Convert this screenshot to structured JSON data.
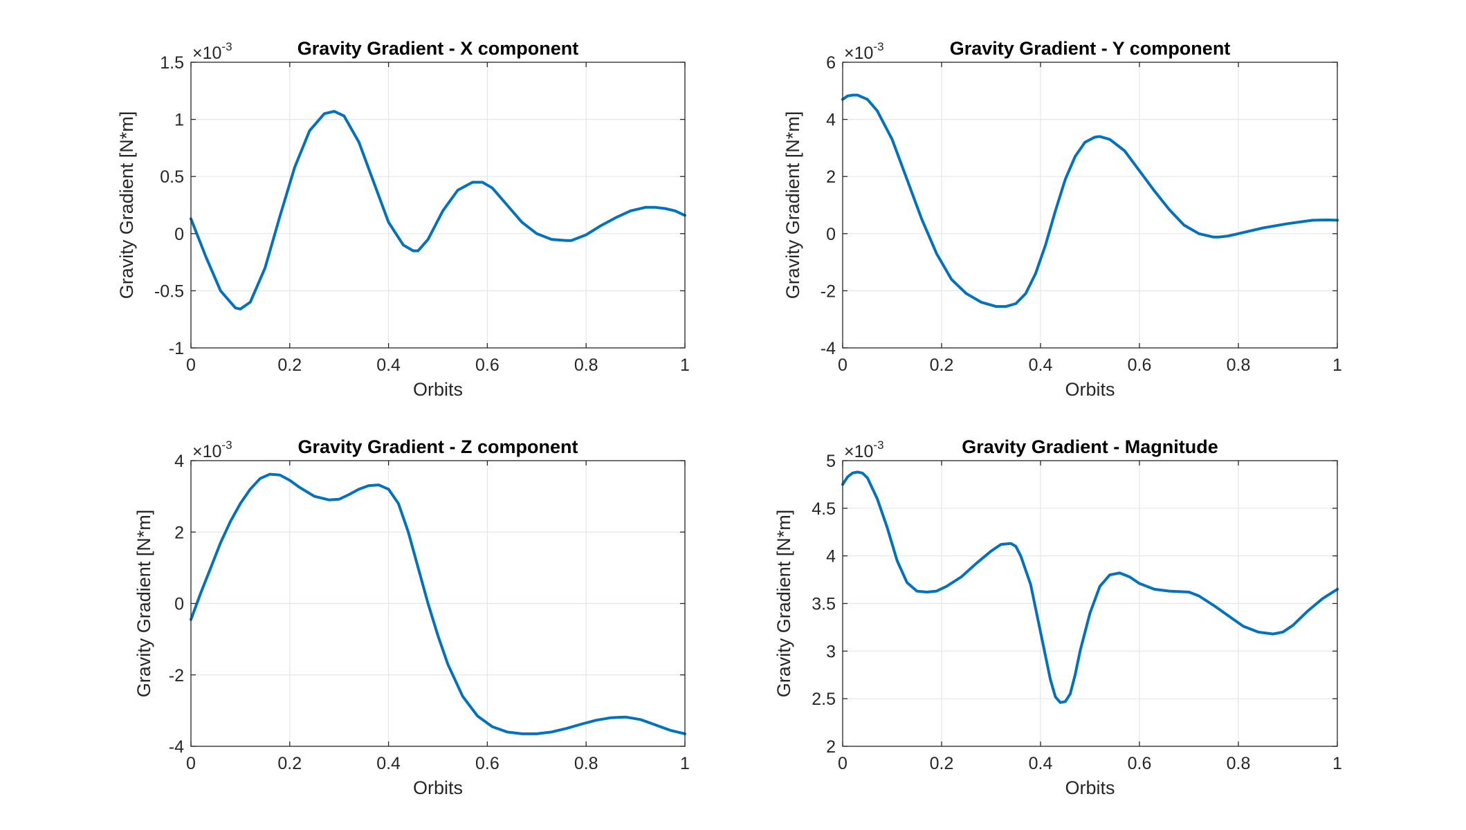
{
  "chart_data": [
    {
      "type": "line",
      "title": "Gravity Gradient - X component",
      "xlabel": "Orbits",
      "ylabel": "Gravity Gradient [N*m]",
      "exponent_label": "×10",
      "exponent_power": "-3",
      "xlim": [
        0,
        1
      ],
      "ylim": [
        -1,
        1.5
      ],
      "xticks": [
        0,
        0.2,
        0.4,
        0.6,
        0.8,
        1
      ],
      "xtick_labels": [
        "0",
        "0.2",
        "0.4",
        "0.6",
        "0.8",
        "1"
      ],
      "yticks": [
        -1,
        -0.5,
        0,
        0.5,
        1,
        1.5
      ],
      "ytick_labels": [
        "-1",
        "-0.5",
        "0",
        "0.5",
        "1",
        "1.5"
      ],
      "grid": true,
      "color": "#0072bd",
      "series": [
        {
          "x": [
            0,
            0.03,
            0.06,
            0.09,
            0.1,
            0.12,
            0.15,
            0.18,
            0.21,
            0.24,
            0.27,
            0.29,
            0.31,
            0.34,
            0.37,
            0.4,
            0.43,
            0.45,
            0.46,
            0.48,
            0.51,
            0.54,
            0.57,
            0.59,
            0.61,
            0.64,
            0.67,
            0.7,
            0.73,
            0.76,
            0.77,
            0.8,
            0.83,
            0.86,
            0.89,
            0.92,
            0.94,
            0.96,
            0.98,
            1.0
          ],
          "y": [
            0.13,
            -0.2,
            -0.5,
            -0.65,
            -0.66,
            -0.6,
            -0.3,
            0.15,
            0.58,
            0.9,
            1.05,
            1.07,
            1.03,
            0.8,
            0.45,
            0.1,
            -0.1,
            -0.15,
            -0.15,
            -0.05,
            0.2,
            0.38,
            0.45,
            0.45,
            0.4,
            0.25,
            0.1,
            0.0,
            -0.05,
            -0.06,
            -0.06,
            -0.01,
            0.07,
            0.14,
            0.2,
            0.23,
            0.23,
            0.22,
            0.2,
            0.16
          ]
        }
      ]
    },
    {
      "type": "line",
      "title": "Gravity Gradient - Y component",
      "xlabel": "Orbits",
      "ylabel": "Gravity Gradient [N*m]",
      "exponent_label": "×10",
      "exponent_power": "-3",
      "xlim": [
        0,
        1
      ],
      "ylim": [
        -4,
        6
      ],
      "xticks": [
        0,
        0.2,
        0.4,
        0.6,
        0.8,
        1
      ],
      "xtick_labels": [
        "0",
        "0.2",
        "0.4",
        "0.6",
        "0.8",
        "1"
      ],
      "yticks": [
        -4,
        -2,
        0,
        2,
        4,
        6
      ],
      "ytick_labels": [
        "-4",
        "-2",
        "0",
        "2",
        "4",
        "6"
      ],
      "grid": true,
      "color": "#0072bd",
      "series": [
        {
          "x": [
            0,
            0.01,
            0.02,
            0.03,
            0.05,
            0.07,
            0.1,
            0.13,
            0.16,
            0.19,
            0.22,
            0.25,
            0.28,
            0.31,
            0.33,
            0.35,
            0.37,
            0.39,
            0.41,
            0.43,
            0.45,
            0.47,
            0.49,
            0.51,
            0.52,
            0.54,
            0.57,
            0.6,
            0.63,
            0.66,
            0.69,
            0.72,
            0.75,
            0.76,
            0.78,
            0.8,
            0.85,
            0.9,
            0.95,
            0.98,
            1.0
          ],
          "y": [
            4.7,
            4.82,
            4.85,
            4.85,
            4.7,
            4.3,
            3.3,
            1.9,
            0.5,
            -0.7,
            -1.6,
            -2.1,
            -2.4,
            -2.55,
            -2.55,
            -2.45,
            -2.1,
            -1.4,
            -0.4,
            0.8,
            1.9,
            2.7,
            3.2,
            3.38,
            3.4,
            3.3,
            2.9,
            2.2,
            1.5,
            0.85,
            0.3,
            0.0,
            -0.12,
            -0.12,
            -0.08,
            0.0,
            0.2,
            0.35,
            0.47,
            0.48,
            0.47
          ]
        }
      ]
    },
    {
      "type": "line",
      "title": "Gravity Gradient - Z component",
      "xlabel": "Orbits",
      "ylabel": "Gravity Gradient [N*m]",
      "exponent_label": "×10",
      "exponent_power": "-3",
      "xlim": [
        0,
        1
      ],
      "ylim": [
        -4,
        4
      ],
      "xticks": [
        0,
        0.2,
        0.4,
        0.6,
        0.8,
        1
      ],
      "xtick_labels": [
        "0",
        "0.2",
        "0.4",
        "0.6",
        "0.8",
        "1"
      ],
      "yticks": [
        -4,
        -2,
        0,
        2,
        4
      ],
      "ytick_labels": [
        "-4",
        "-2",
        "0",
        "2",
        "4"
      ],
      "grid": true,
      "color": "#0072bd",
      "series": [
        {
          "x": [
            0,
            0.02,
            0.04,
            0.06,
            0.08,
            0.1,
            0.12,
            0.14,
            0.16,
            0.18,
            0.2,
            0.22,
            0.25,
            0.28,
            0.3,
            0.32,
            0.34,
            0.36,
            0.38,
            0.4,
            0.42,
            0.44,
            0.46,
            0.48,
            0.5,
            0.52,
            0.55,
            0.58,
            0.61,
            0.64,
            0.67,
            0.7,
            0.73,
            0.76,
            0.79,
            0.82,
            0.85,
            0.88,
            0.91,
            0.94,
            0.97,
            1.0
          ],
          "y": [
            -0.45,
            0.3,
            1.0,
            1.7,
            2.3,
            2.8,
            3.2,
            3.5,
            3.62,
            3.6,
            3.45,
            3.25,
            3.0,
            2.9,
            2.92,
            3.05,
            3.2,
            3.3,
            3.32,
            3.2,
            2.8,
            2.0,
            1.0,
            0.0,
            -0.9,
            -1.7,
            -2.6,
            -3.15,
            -3.45,
            -3.6,
            -3.65,
            -3.65,
            -3.6,
            -3.5,
            -3.38,
            -3.27,
            -3.2,
            -3.18,
            -3.25,
            -3.4,
            -3.55,
            -3.65
          ]
        }
      ]
    },
    {
      "type": "line",
      "title": "Gravity Gradient - Magnitude",
      "xlabel": "Orbits",
      "ylabel": "Gravity Gradient [N*m]",
      "exponent_label": "×10",
      "exponent_power": "-3",
      "xlim": [
        0,
        1
      ],
      "ylim": [
        2,
        5
      ],
      "xticks": [
        0,
        0.2,
        0.4,
        0.6,
        0.8,
        1
      ],
      "xtick_labels": [
        "0",
        "0.2",
        "0.4",
        "0.6",
        "0.8",
        "1"
      ],
      "yticks": [
        2,
        2.5,
        3,
        3.5,
        4,
        4.5,
        5
      ],
      "ytick_labels": [
        "2",
        "2.5",
        "3",
        "3.5",
        "4",
        "4.5",
        "5"
      ],
      "grid": true,
      "color": "#0072bd",
      "series": [
        {
          "x": [
            0,
            0.01,
            0.02,
            0.03,
            0.04,
            0.05,
            0.07,
            0.09,
            0.11,
            0.13,
            0.15,
            0.17,
            0.19,
            0.21,
            0.24,
            0.27,
            0.3,
            0.32,
            0.34,
            0.35,
            0.36,
            0.38,
            0.4,
            0.42,
            0.43,
            0.44,
            0.45,
            0.46,
            0.47,
            0.48,
            0.5,
            0.52,
            0.54,
            0.56,
            0.58,
            0.6,
            0.63,
            0.66,
            0.7,
            0.72,
            0.75,
            0.78,
            0.81,
            0.84,
            0.87,
            0.89,
            0.91,
            0.94,
            0.97,
            1.0
          ],
          "y": [
            4.75,
            4.83,
            4.87,
            4.88,
            4.87,
            4.82,
            4.6,
            4.3,
            3.95,
            3.72,
            3.63,
            3.62,
            3.63,
            3.68,
            3.78,
            3.92,
            4.05,
            4.12,
            4.13,
            4.1,
            4.0,
            3.7,
            3.2,
            2.7,
            2.52,
            2.46,
            2.47,
            2.55,
            2.75,
            3.0,
            3.4,
            3.68,
            3.8,
            3.82,
            3.78,
            3.71,
            3.65,
            3.63,
            3.62,
            3.58,
            3.48,
            3.37,
            3.26,
            3.2,
            3.18,
            3.2,
            3.27,
            3.42,
            3.55,
            3.65
          ]
        }
      ]
    }
  ]
}
